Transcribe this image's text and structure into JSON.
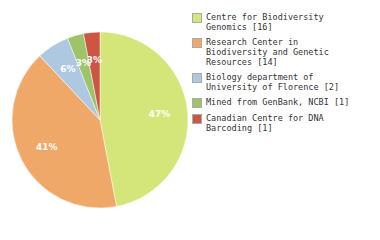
{
  "chart_data": {
    "type": "pie",
    "categories": [
      "Centre for Biodiversity\nGenomics [16]",
      "Research Center in\nBiodiversity and Genetic\nResources [14]",
      "Biology department of\nUniversity of Florence [2]",
      "Mined from GenBank, NCBI [1]",
      "Canadian Centre for DNA\nBarcoding [1]"
    ],
    "values": [
      47,
      41,
      6,
      3,
      3
    ],
    "value_labels": [
      "47%",
      "41%",
      "6%",
      "3%",
      "3%"
    ],
    "data_labels": true,
    "colors": [
      "#d4e57a",
      "#f0a868",
      "#adc8e0",
      "#9dc46a",
      "#cc5544"
    ]
  }
}
